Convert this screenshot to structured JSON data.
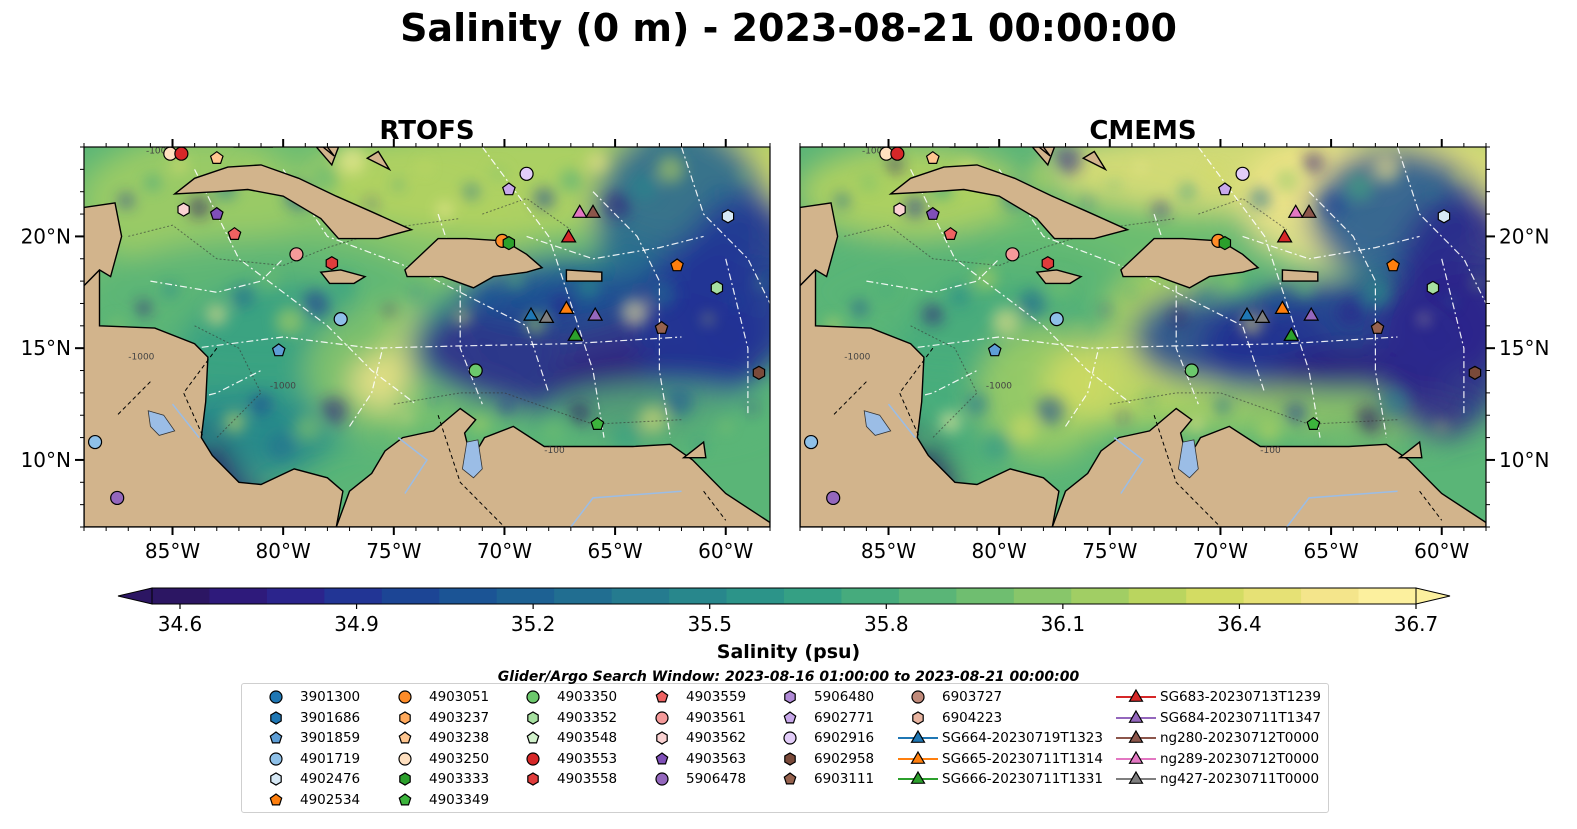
{
  "title": "Salinity (0 m) - 2023-08-21 00:00:00",
  "panels": [
    {
      "title": "RTOFS"
    },
    {
      "title": "CMEMS"
    }
  ],
  "map_extent": {
    "lon": [
      -89,
      -58
    ],
    "lat": [
      7,
      24
    ]
  },
  "axes": {
    "x_ticks": [
      {
        "lon": -85,
        "label": "85°W"
      },
      {
        "lon": -80,
        "label": "80°W"
      },
      {
        "lon": -75,
        "label": "75°W"
      },
      {
        "lon": -70,
        "label": "70°W"
      },
      {
        "lon": -65,
        "label": "65°W"
      },
      {
        "lon": -60,
        "label": "60°W"
      }
    ],
    "y_ticks": [
      {
        "lat": 20,
        "label": "20°N"
      },
      {
        "lat": 15,
        "label": "15°N"
      },
      {
        "lat": 10,
        "label": "10°N"
      }
    ]
  },
  "colorbar": {
    "label": "Salinity (psu)",
    "min": 34.6,
    "max": 36.7,
    "step": 0.1,
    "ticks": [
      "34.6",
      "34.9",
      "35.2",
      "35.5",
      "35.8",
      "36.1",
      "36.4",
      "36.7"
    ],
    "colors": [
      "#2c1663",
      "#2e1a7b",
      "#2b248c",
      "#223595",
      "#1c4595",
      "#1b5495",
      "#1d6193",
      "#216e91",
      "#257b8f",
      "#28878c",
      "#2c9489",
      "#35a084",
      "#46ab7d",
      "#5ab577",
      "#6fbe70",
      "#88c66a",
      "#a1ce64",
      "#bad55f",
      "#d3dc63",
      "#e6e175",
      "#f4e58b",
      "#fcf09e"
    ],
    "extend": "both"
  },
  "land_color": "#d2b48c",
  "contour_labels": [
    "-100",
    "-1000",
    "-1000",
    "-100"
  ],
  "search_window": "Glider/Argo Search Window: 2023-08-16 01:00:00 to 2023-08-21 00:00:00",
  "legend": [
    {
      "label": "3901300",
      "marker": "circle",
      "color": "#1f77b4"
    },
    {
      "label": "3901686",
      "marker": "hexagon",
      "color": "#1f77b4"
    },
    {
      "label": "3901859",
      "marker": "pentagon",
      "color": "#5e9ed6"
    },
    {
      "label": "4901719",
      "marker": "circle",
      "color": "#8ec0e8"
    },
    {
      "label": "4902476",
      "marker": "hexagon",
      "color": "#d6e8f5"
    },
    {
      "label": "4902534",
      "marker": "pentagon",
      "color": "#ff7f0e"
    },
    {
      "label": "4903051",
      "marker": "circle",
      "color": "#ff8c28"
    },
    {
      "label": "4903237",
      "marker": "hexagon",
      "color": "#ffa95c"
    },
    {
      "label": "4903238",
      "marker": "pentagon",
      "color": "#ffc690"
    },
    {
      "label": "4903250",
      "marker": "circle",
      "color": "#ffe0c0"
    },
    {
      "label": "4903333",
      "marker": "hexagon",
      "color": "#2ca02c"
    },
    {
      "label": "4903349",
      "marker": "pentagon",
      "color": "#3cb43c"
    },
    {
      "label": "4903350",
      "marker": "circle",
      "color": "#6cc86c"
    },
    {
      "label": "4903352",
      "marker": "hexagon",
      "color": "#a6e0a0"
    },
    {
      "label": "4903548",
      "marker": "pentagon",
      "color": "#d2f2cc"
    },
    {
      "label": "4903553",
      "marker": "circle",
      "color": "#d62728"
    },
    {
      "label": "4903558",
      "marker": "hexagon",
      "color": "#e03c3c"
    },
    {
      "label": "4903559",
      "marker": "pentagon",
      "color": "#ee6262"
    },
    {
      "label": "4903561",
      "marker": "circle",
      "color": "#f59a9a"
    },
    {
      "label": "4903562",
      "marker": "hexagon",
      "color": "#fad2d2"
    },
    {
      "label": "4903563",
      "marker": "pentagon",
      "color": "#7f4fb8"
    },
    {
      "label": "5906478",
      "marker": "circle",
      "color": "#9467bd"
    },
    {
      "label": "5906480",
      "marker": "hexagon",
      "color": "#b08ad6"
    },
    {
      "label": "6902771",
      "marker": "pentagon",
      "color": "#c8a8ea"
    },
    {
      "label": "6902916",
      "marker": "circle",
      "color": "#e2ccf8"
    },
    {
      "label": "6902958",
      "marker": "hexagon",
      "color": "#7a4a3a"
    },
    {
      "label": "6903111",
      "marker": "pentagon",
      "color": "#96624e"
    },
    {
      "label": "6903727",
      "marker": "circle",
      "color": "#c08a7a"
    },
    {
      "label": "6904223",
      "marker": "hexagon",
      "color": "#e8b4a0"
    },
    {
      "label": "SG664-20230719T1323",
      "marker": "triangle-line",
      "color": "#1f77b4"
    },
    {
      "label": "SG665-20230711T1314",
      "marker": "triangle-line",
      "color": "#ff7f0e"
    },
    {
      "label": "SG666-20230711T1331",
      "marker": "triangle-line",
      "color": "#2ca02c"
    },
    {
      "label": "SG683-20230713T1239",
      "marker": "triangle-line",
      "color": "#d62728"
    },
    {
      "label": "SG684-20230711T1347",
      "marker": "triangle-line",
      "color": "#9467bd"
    },
    {
      "label": "ng280-20230712T0000",
      "marker": "triangle-line",
      "color": "#8c564b"
    },
    {
      "label": "ng289-20230712T0000",
      "marker": "triangle-line",
      "color": "#e377c2"
    },
    {
      "label": "ng427-20230711T0000",
      "marker": "triangle-line",
      "color": "#7f7f7f"
    }
  ],
  "markers": [
    {
      "label": "4903250",
      "lon": -85.1,
      "lat": 23.7
    },
    {
      "label": "4903553",
      "lon": -84.6,
      "lat": 23.7
    },
    {
      "label": "4903238",
      "lon": -83.0,
      "lat": 23.5
    },
    {
      "label": "4903562",
      "lon": -84.5,
      "lat": 21.2
    },
    {
      "label": "4903563",
      "lon": -83.0,
      "lat": 21.0
    },
    {
      "label": "4903559",
      "lon": -82.2,
      "lat": 20.1
    },
    {
      "label": "4903561",
      "lon": -79.4,
      "lat": 19.2
    },
    {
      "label": "4903558",
      "lon": -77.8,
      "lat": 18.8
    },
    {
      "label": "4901719",
      "lon": -77.4,
      "lat": 16.3
    },
    {
      "label": "3901859",
      "lon": -80.2,
      "lat": 14.9
    },
    {
      "label": "4903350",
      "lon": -71.3,
      "lat": 14.0
    },
    {
      "label": "4903051",
      "lon": -70.1,
      "lat": 19.8
    },
    {
      "label": "4903333",
      "lon": -69.8,
      "lat": 19.7
    },
    {
      "label": "6902916",
      "lon": -69.0,
      "lat": 22.8
    },
    {
      "label": "6902771",
      "lon": -69.8,
      "lat": 22.1
    },
    {
      "label": "4902476",
      "lon": -59.9,
      "lat": 20.9
    },
    {
      "label": "4902534",
      "lon": -62.2,
      "lat": 18.7
    },
    {
      "label": "4903352",
      "lon": -60.4,
      "lat": 17.7
    },
    {
      "label": "6903111",
      "lon": -62.9,
      "lat": 15.9
    },
    {
      "label": "6902958",
      "lon": -58.5,
      "lat": 13.9
    },
    {
      "label": "4903349",
      "lon": -65.8,
      "lat": 11.6
    },
    {
      "label": "5906478",
      "lon": -87.5,
      "lat": 8.3
    },
    {
      "label": "4901719",
      "lon": -88.5,
      "lat": 10.8
    },
    {
      "label": "SG683-20230713T1239",
      "lon": -67.1,
      "lat": 20.0
    },
    {
      "label": "ng289-20230712T0000",
      "lon": -66.6,
      "lat": 21.1
    },
    {
      "label": "ng280-20230712T0000",
      "lon": -66.0,
      "lat": 21.1
    },
    {
      "label": "SG664-20230719T1323",
      "lon": -68.8,
      "lat": 16.5
    },
    {
      "label": "ng427-20230711T0000",
      "lon": -68.1,
      "lat": 16.4
    },
    {
      "label": "SG665-20230711T1314",
      "lon": -67.2,
      "lat": 16.8
    },
    {
      "label": "SG684-20230711T1347",
      "lon": -65.9,
      "lat": 16.5
    },
    {
      "label": "SG666-20230711T1331",
      "lon": -66.8,
      "lat": 15.6
    }
  ]
}
